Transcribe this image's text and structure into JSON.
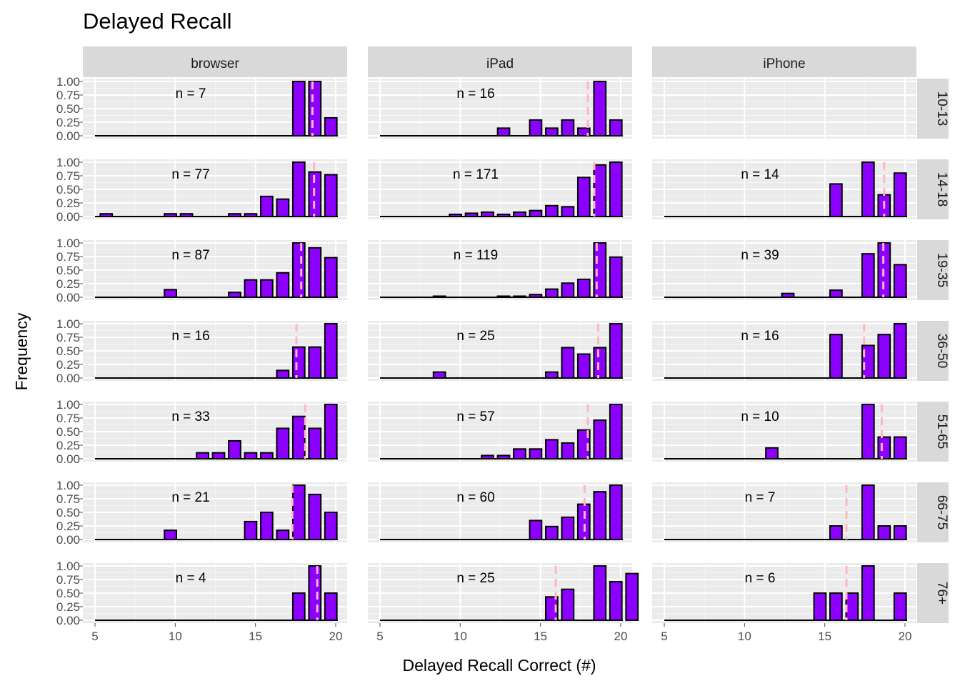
{
  "chart_data": {
    "type": "bar",
    "title": "Delayed Recall",
    "xlabel": "Delayed Recall Correct (#)",
    "ylabel": "Frequency",
    "xlim": [
      5,
      20
    ],
    "ylim": [
      0,
      1
    ],
    "x_ticks": [
      5,
      10,
      15,
      20
    ],
    "y_ticks": [
      0,
      0.25,
      0.5,
      0.75,
      1
    ],
    "y_tick_labels": [
      "0.00",
      "0.25",
      "0.50",
      "0.75",
      "1.00"
    ],
    "columns": [
      "browser",
      "iPad",
      "iPhone"
    ],
    "rows": [
      "10-13",
      "14-18",
      "19-35",
      "36-50",
      "51-65",
      "66-75",
      "76+"
    ],
    "grid": true,
    "colors": {
      "bar_fill": "#8B00FF",
      "bar_outline": "#000000",
      "mean_line": "#FFB6C1",
      "panel_bg": "#EBEBEB",
      "strip_bg": "#D9D9D9",
      "grid_major": "#FFFFFF"
    },
    "panels": [
      {
        "column": "browser",
        "row": "10-13",
        "n_label": "n = 7",
        "mean": 18.55,
        "bars": [
          {
            "x": 18,
            "y": 1.0
          },
          {
            "x": 19,
            "y": 1.0
          },
          {
            "x": 20,
            "y": 0.33
          }
        ]
      },
      {
        "column": "iPad",
        "row": "10-13",
        "n_label": "n = 16",
        "mean": 17.95,
        "bars": [
          {
            "x": 13,
            "y": 0.14
          },
          {
            "x": 15,
            "y": 0.29
          },
          {
            "x": 16,
            "y": 0.14
          },
          {
            "x": 17,
            "y": 0.29
          },
          {
            "x": 18,
            "y": 0.14
          },
          {
            "x": 19,
            "y": 1.0
          },
          {
            "x": 20,
            "y": 0.29
          }
        ]
      },
      {
        "column": "iPhone",
        "row": "10-13",
        "n_label": "",
        "mean": null,
        "bars": []
      },
      {
        "column": "browser",
        "row": "14-18",
        "n_label": "n = 77",
        "mean": 18.65,
        "bars": [
          {
            "x": 6,
            "y": 0.05
          },
          {
            "x": 10,
            "y": 0.05
          },
          {
            "x": 11,
            "y": 0.05
          },
          {
            "x": 14,
            "y": 0.05
          },
          {
            "x": 15,
            "y": 0.05
          },
          {
            "x": 16,
            "y": 0.37
          },
          {
            "x": 17,
            "y": 0.32
          },
          {
            "x": 18,
            "y": 1.0
          },
          {
            "x": 19,
            "y": 0.82
          },
          {
            "x": 20,
            "y": 0.77
          }
        ]
      },
      {
        "column": "iPad",
        "row": "14-18",
        "n_label": "n = 171",
        "mean": 18.35,
        "bars": [
          {
            "x": 10,
            "y": 0.04
          },
          {
            "x": 11,
            "y": 0.06
          },
          {
            "x": 12,
            "y": 0.08
          },
          {
            "x": 13,
            "y": 0.04
          },
          {
            "x": 14,
            "y": 0.08
          },
          {
            "x": 15,
            "y": 0.11
          },
          {
            "x": 16,
            "y": 0.2
          },
          {
            "x": 17,
            "y": 0.18
          },
          {
            "x": 18,
            "y": 0.72
          },
          {
            "x": 19,
            "y": 0.95
          },
          {
            "x": 20,
            "y": 1.0
          }
        ]
      },
      {
        "column": "iPhone",
        "row": "14-18",
        "n_label": "n = 14",
        "mean": 18.7,
        "bars": [
          {
            "x": 16,
            "y": 0.6
          },
          {
            "x": 18,
            "y": 1.0
          },
          {
            "x": 19,
            "y": 0.4
          },
          {
            "x": 20,
            "y": 0.8
          }
        ]
      },
      {
        "column": "browser",
        "row": "19-35",
        "n_label": "n = 87",
        "mean": 17.85,
        "bars": [
          {
            "x": 10,
            "y": 0.14
          },
          {
            "x": 14,
            "y": 0.09
          },
          {
            "x": 15,
            "y": 0.32
          },
          {
            "x": 16,
            "y": 0.32
          },
          {
            "x": 17,
            "y": 0.45
          },
          {
            "x": 18,
            "y": 1.0
          },
          {
            "x": 19,
            "y": 0.91
          },
          {
            "x": 20,
            "y": 0.73
          }
        ]
      },
      {
        "column": "iPad",
        "row": "19-35",
        "n_label": "n = 119",
        "mean": 18.5,
        "bars": [
          {
            "x": 9,
            "y": 0.02
          },
          {
            "x": 13,
            "y": 0.02
          },
          {
            "x": 14,
            "y": 0.02
          },
          {
            "x": 15,
            "y": 0.05
          },
          {
            "x": 16,
            "y": 0.15
          },
          {
            "x": 17,
            "y": 0.26
          },
          {
            "x": 18,
            "y": 0.33
          },
          {
            "x": 19,
            "y": 1.0
          },
          {
            "x": 20,
            "y": 0.74
          }
        ]
      },
      {
        "column": "iPhone",
        "row": "19-35",
        "n_label": "n = 39",
        "mean": 18.65,
        "bars": [
          {
            "x": 13,
            "y": 0.07
          },
          {
            "x": 16,
            "y": 0.13
          },
          {
            "x": 18,
            "y": 0.8
          },
          {
            "x": 19,
            "y": 1.0
          },
          {
            "x": 20,
            "y": 0.6
          }
        ]
      },
      {
        "column": "browser",
        "row": "36-50",
        "n_label": "n = 16",
        "mean": 17.55,
        "bars": [
          {
            "x": 17,
            "y": 0.14
          },
          {
            "x": 18,
            "y": 0.57
          },
          {
            "x": 19,
            "y": 0.57
          },
          {
            "x": 20,
            "y": 1.0
          }
        ]
      },
      {
        "column": "iPad",
        "row": "36-50",
        "n_label": "n = 25",
        "mean": 18.6,
        "bars": [
          {
            "x": 9,
            "y": 0.11
          },
          {
            "x": 16,
            "y": 0.11
          },
          {
            "x": 17,
            "y": 0.56
          },
          {
            "x": 18,
            "y": 0.44
          },
          {
            "x": 19,
            "y": 0.56
          },
          {
            "x": 20,
            "y": 1.0
          }
        ]
      },
      {
        "column": "iPhone",
        "row": "36-50",
        "n_label": "n = 16",
        "mean": 17.45,
        "bars": [
          {
            "x": 16,
            "y": 0.8
          },
          {
            "x": 18,
            "y": 0.6
          },
          {
            "x": 19,
            "y": 0.8
          },
          {
            "x": 20,
            "y": 1.0
          }
        ]
      },
      {
        "column": "browser",
        "row": "51-65",
        "n_label": "n = 33",
        "mean": 18.1,
        "bars": [
          {
            "x": 12,
            "y": 0.11
          },
          {
            "x": 13,
            "y": 0.11
          },
          {
            "x": 14,
            "y": 0.33
          },
          {
            "x": 15,
            "y": 0.11
          },
          {
            "x": 16,
            "y": 0.11
          },
          {
            "x": 17,
            "y": 0.56
          },
          {
            "x": 18,
            "y": 0.78
          },
          {
            "x": 19,
            "y": 0.56
          },
          {
            "x": 20,
            "y": 1.0
          }
        ]
      },
      {
        "column": "iPad",
        "row": "51-65",
        "n_label": "n = 57",
        "mean": 17.95,
        "bars": [
          {
            "x": 12,
            "y": 0.06
          },
          {
            "x": 13,
            "y": 0.06
          },
          {
            "x": 14,
            "y": 0.18
          },
          {
            "x": 15,
            "y": 0.18
          },
          {
            "x": 16,
            "y": 0.35
          },
          {
            "x": 17,
            "y": 0.29
          },
          {
            "x": 18,
            "y": 0.53
          },
          {
            "x": 19,
            "y": 0.71
          },
          {
            "x": 20,
            "y": 1.0
          }
        ]
      },
      {
        "column": "iPhone",
        "row": "51-65",
        "n_label": "n = 10",
        "mean": 18.55,
        "bars": [
          {
            "x": 12,
            "y": 0.2
          },
          {
            "x": 18,
            "y": 1.0
          },
          {
            "x": 19,
            "y": 0.4
          },
          {
            "x": 20,
            "y": 0.4
          }
        ]
      },
      {
        "column": "browser",
        "row": "66-75",
        "n_label": "n = 21",
        "mean": 17.3,
        "bars": [
          {
            "x": 10,
            "y": 0.17
          },
          {
            "x": 15,
            "y": 0.33
          },
          {
            "x": 16,
            "y": 0.5
          },
          {
            "x": 17,
            "y": 0.17
          },
          {
            "x": 18,
            "y": 1.0
          },
          {
            "x": 19,
            "y": 0.83
          },
          {
            "x": 20,
            "y": 0.5
          }
        ]
      },
      {
        "column": "iPad",
        "row": "66-75",
        "n_label": "n = 60",
        "mean": 17.75,
        "bars": [
          {
            "x": 15,
            "y": 0.35
          },
          {
            "x": 16,
            "y": 0.24
          },
          {
            "x": 17,
            "y": 0.41
          },
          {
            "x": 18,
            "y": 0.65
          },
          {
            "x": 19,
            "y": 0.88
          },
          {
            "x": 20,
            "y": 1.0
          }
        ]
      },
      {
        "column": "iPhone",
        "row": "66-75",
        "n_label": "n = 7",
        "mean": 16.35,
        "bars": [
          {
            "x": 16,
            "y": 0.25
          },
          {
            "x": 18,
            "y": 1.0
          },
          {
            "x": 19,
            "y": 0.25
          },
          {
            "x": 20,
            "y": 0.25
          }
        ]
      },
      {
        "column": "browser",
        "row": "76+",
        "n_label": "n = 4",
        "mean": 18.85,
        "bars": [
          {
            "x": 18,
            "y": 0.5
          },
          {
            "x": 19,
            "y": 1.0
          },
          {
            "x": 20,
            "y": 0.5
          }
        ]
      },
      {
        "column": "iPad",
        "row": "76+",
        "n_label": "n = 25",
        "mean": 15.95,
        "bars": [
          {
            "x": 16,
            "y": 0.43
          },
          {
            "x": 17,
            "y": 0.57
          },
          {
            "x": 19,
            "y": 1.0
          },
          {
            "x": 20,
            "y": 0.71
          },
          {
            "x": 21,
            "y": 0.86
          }
        ]
      },
      {
        "column": "iPhone",
        "row": "76+",
        "n_label": "n = 6",
        "mean": 16.35,
        "bars": [
          {
            "x": 15,
            "y": 0.5
          },
          {
            "x": 16,
            "y": 0.5
          },
          {
            "x": 17,
            "y": 0.5
          },
          {
            "x": 18,
            "y": 1.0
          },
          {
            "x": 20,
            "y": 0.5
          }
        ]
      }
    ]
  }
}
